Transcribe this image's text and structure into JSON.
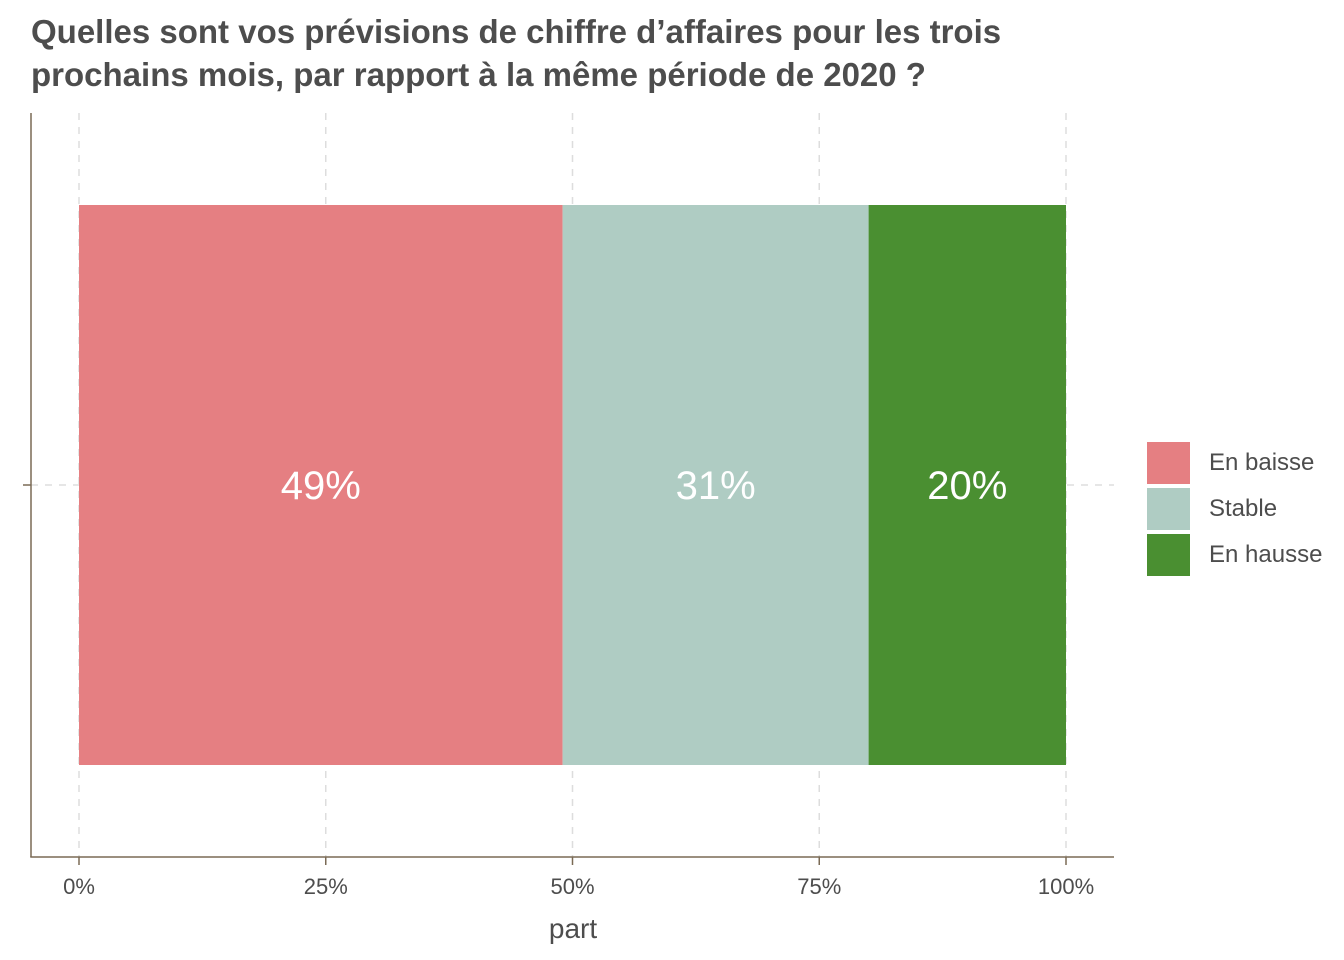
{
  "chart_data": {
    "type": "bar",
    "orientation": "horizontal",
    "stacked": true,
    "title": "Quelles sont vos prévisions de chiffre d’affaires pour les trois prochains mois, par rapport à la même période de 2020 ?",
    "title_lines": [
      "Quelles sont vos prévisions de chiffre d’affaires pour les trois",
      "prochains mois, par rapport à la même période de 2020 ?"
    ],
    "xlabel": "part",
    "ylabel": "",
    "xlim": [
      0,
      1
    ],
    "x_ticks": [
      0,
      0.25,
      0.5,
      0.75,
      1
    ],
    "x_tick_labels": [
      "0%",
      "25%",
      "50%",
      "75%",
      "100%"
    ],
    "grid": true,
    "legend_position": "right",
    "series": [
      {
        "name": "En baisse",
        "value": 0.49,
        "label": "49%",
        "color": "#e57f82"
      },
      {
        "name": "Stable",
        "value": 0.31,
        "label": "31%",
        "color": "#afccc3"
      },
      {
        "name": "En hausse",
        "value": 0.2,
        "label": "20%",
        "color": "#4a8f31"
      }
    ]
  },
  "colors": {
    "axis": "#7a6a55",
    "grid": "#dddddd",
    "text": "#4d4d4d"
  }
}
